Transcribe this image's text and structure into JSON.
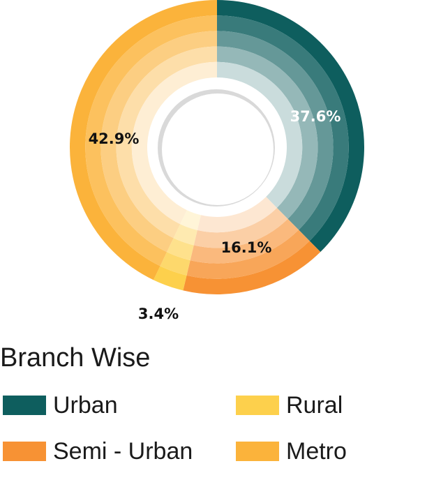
{
  "chart_data": {
    "type": "pie",
    "title": "Branch Wise",
    "donut": true,
    "slices": [
      {
        "name": "Urban",
        "value": 37.6,
        "label": "37.6%",
        "color": "#0e5e5e",
        "label_color": "#ffffff"
      },
      {
        "name": "Semi - Urban",
        "value": 16.1,
        "label": "16.1%",
        "color": "#f79234",
        "label_color": "#111111"
      },
      {
        "name": "Rural",
        "value": 3.4,
        "label": "3.4%",
        "color": "#fdd04c",
        "label_color": "#111111"
      },
      {
        "name": "Metro",
        "value": 42.9,
        "label": "42.9%",
        "color": "#fbb33b",
        "label_color": "#111111"
      }
    ],
    "legend": {
      "items": [
        {
          "label": "Urban",
          "color": "#0e5e5e"
        },
        {
          "label": "Rural",
          "color": "#fdd04c"
        },
        {
          "label": "Semi - Urban",
          "color": "#f79234"
        },
        {
          "label": "Metro",
          "color": "#fbb33b"
        }
      ]
    }
  }
}
